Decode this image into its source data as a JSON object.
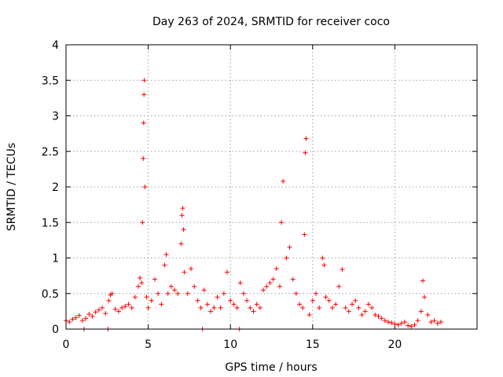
{
  "chart_data": {
    "type": "scatter",
    "title": "Day 263 of 2024, SRMTID for receiver coco",
    "xlabel": "GPS time / hours",
    "ylabel": "SRMTID / TECUs",
    "xlim": [
      0,
      25
    ],
    "ylim": [
      0,
      4
    ],
    "xticks": [
      0,
      5,
      10,
      15,
      20
    ],
    "xtick_labels": [
      "0",
      "5",
      "10",
      "15",
      "20"
    ],
    "yticks": [
      0,
      0.5,
      1,
      1.5,
      2,
      2.5,
      3,
      3.5,
      4
    ],
    "ytick_labels": [
      "0",
      "0.5",
      "1",
      "1.5",
      "2",
      "2.5",
      "3",
      "3.5",
      "4"
    ],
    "grid": true,
    "legend": "none",
    "marker": "+",
    "color": "#ff0000",
    "series": [
      {
        "name": "SRMTID",
        "x": [
          0.0,
          0.2,
          0.4,
          0.6,
          0.8,
          1.0,
          1.2,
          1.4,
          1.6,
          1.8,
          2.0,
          2.2,
          2.4,
          2.6,
          2.7,
          2.8,
          3.0,
          3.2,
          3.4,
          3.6,
          3.8,
          4.0,
          4.2,
          4.4,
          4.5,
          4.6,
          4.65,
          4.7,
          4.72,
          4.74,
          4.76,
          4.8,
          4.9,
          5.0,
          5.2,
          5.4,
          5.6,
          5.8,
          6.0,
          6.1,
          6.2,
          6.4,
          6.6,
          6.8,
          7.0,
          7.05,
          7.1,
          7.15,
          7.2,
          7.4,
          7.6,
          7.8,
          8.0,
          8.2,
          8.4,
          8.6,
          8.8,
          9.0,
          9.2,
          9.4,
          9.6,
          9.8,
          10.0,
          10.2,
          10.4,
          10.6,
          10.8,
          11.0,
          11.2,
          11.4,
          11.6,
          11.8,
          12.0,
          12.2,
          12.4,
          12.6,
          12.8,
          13.0,
          13.1,
          13.2,
          13.4,
          13.6,
          13.8,
          14.0,
          14.2,
          14.4,
          14.5,
          14.55,
          14.6,
          14.8,
          15.0,
          15.2,
          15.4,
          15.6,
          15.7,
          15.8,
          16.0,
          16.2,
          16.4,
          16.6,
          16.8,
          17.0,
          17.2,
          17.4,
          17.6,
          17.8,
          18.0,
          18.2,
          18.4,
          18.6,
          18.8,
          19.0,
          19.2,
          19.4,
          19.6,
          19.8,
          20.0,
          20.2,
          20.4,
          20.6,
          20.8,
          21.0,
          21.2,
          21.4,
          21.6,
          21.7,
          21.8,
          22.0,
          22.2,
          22.4,
          22.6,
          22.8,
          1.1,
          2.55,
          8.3,
          10.55
        ],
        "y": [
          0.12,
          0.1,
          0.14,
          0.16,
          0.19,
          0.12,
          0.15,
          0.21,
          0.18,
          0.24,
          0.27,
          0.3,
          0.22,
          0.4,
          0.48,
          0.5,
          0.28,
          0.25,
          0.3,
          0.32,
          0.35,
          0.3,
          0.45,
          0.6,
          0.72,
          0.65,
          1.5,
          2.4,
          2.9,
          3.3,
          3.5,
          2.0,
          0.45,
          0.3,
          0.4,
          0.7,
          0.5,
          0.35,
          0.9,
          1.05,
          0.5,
          0.6,
          0.55,
          0.5,
          1.2,
          1.6,
          1.7,
          1.4,
          0.8,
          0.5,
          0.85,
          0.6,
          0.4,
          0.3,
          0.55,
          0.35,
          0.25,
          0.3,
          0.45,
          0.3,
          0.5,
          0.8,
          0.4,
          0.35,
          0.3,
          0.65,
          0.5,
          0.4,
          0.3,
          0.25,
          0.35,
          0.3,
          0.55,
          0.6,
          0.65,
          0.7,
          0.85,
          0.6,
          1.5,
          2.08,
          1.0,
          1.15,
          0.7,
          0.5,
          0.35,
          0.3,
          1.33,
          2.48,
          2.68,
          0.2,
          0.4,
          0.5,
          0.3,
          1.0,
          0.9,
          0.45,
          0.4,
          0.3,
          0.35,
          0.6,
          0.84,
          0.3,
          0.25,
          0.35,
          0.4,
          0.3,
          0.2,
          0.25,
          0.35,
          0.3,
          0.2,
          0.18,
          0.15,
          0.12,
          0.1,
          0.09,
          0.07,
          0.06,
          0.08,
          0.1,
          0.05,
          0.04,
          0.06,
          0.12,
          0.25,
          0.68,
          0.45,
          0.2,
          0.1,
          0.12,
          0.08,
          0.1,
          0.0,
          0.0,
          0.0,
          0.0
        ]
      }
    ]
  }
}
